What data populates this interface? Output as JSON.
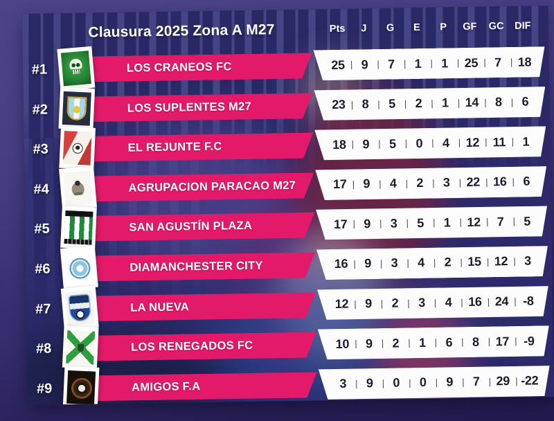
{
  "chart_data": {
    "type": "table",
    "title": "Clausura 2025 Zona A M27",
    "columns": [
      "Pts",
      "J",
      "G",
      "E",
      "P",
      "GF",
      "GC",
      "DIF"
    ],
    "rows": [
      {
        "rank": "#1",
        "team": "LOS CRANEOS FC",
        "logo": "white-skull-on-green-crest",
        "values": [
          "25",
          "9",
          "7",
          "1",
          "1",
          "25",
          "7",
          "18"
        ]
      },
      {
        "rank": "#2",
        "team": "LOS SUPLENTES M27",
        "logo": "lightblue-yellow-shield-on-dark",
        "values": [
          "23",
          "8",
          "5",
          "2",
          "1",
          "14",
          "8",
          "6"
        ]
      },
      {
        "rank": "#3",
        "team": "EL REJUNTE F.C",
        "logo": "red-white-diagonal-soccer-ball",
        "values": [
          "18",
          "9",
          "5",
          "0",
          "4",
          "12",
          "11",
          "1"
        ]
      },
      {
        "rank": "#4",
        "team": "AGRUPACION PARACAO M27",
        "logo": "grey-eagle-emblem-on-white",
        "values": [
          "17",
          "9",
          "4",
          "2",
          "3",
          "22",
          "16",
          "6"
        ]
      },
      {
        "rank": "#5",
        "team": "SAN AGUSTÍN PLAZA",
        "logo": "green-white-stripes-black-bands",
        "values": [
          "17",
          "9",
          "3",
          "5",
          "1",
          "12",
          "7",
          "5"
        ]
      },
      {
        "rank": "#6",
        "team": "DIAMANCHESTER CITY",
        "logo": "sky-blue-circle-badge",
        "values": [
          "16",
          "9",
          "3",
          "4",
          "2",
          "15",
          "12",
          "3"
        ]
      },
      {
        "rank": "#7",
        "team": "LA NUEVA",
        "logo": "blue-shield-white-band-ball",
        "values": [
          "12",
          "9",
          "2",
          "3",
          "4",
          "16",
          "24",
          "-8"
        ]
      },
      {
        "rank": "#8",
        "team": "LOS RENEGADOS FC",
        "logo": "green-x-cross-on-white",
        "values": [
          "10",
          "9",
          "2",
          "1",
          "6",
          "8",
          "17",
          "-9"
        ]
      },
      {
        "rank": "#9",
        "team": "AMIGOS F.A",
        "logo": "black-badge-brown-ring-ball",
        "values": [
          "3",
          "9",
          "0",
          "0",
          "9",
          "7",
          "29",
          "-22"
        ]
      }
    ]
  },
  "colors": {
    "accent_pink": "#e3196a",
    "stats_panel_white": "#fcfcfd",
    "background_outer_top": "#4d4389",
    "background_outer_bottom": "#221a4e",
    "photo_panel_navy": "#2c2a6a",
    "stat_text": "#1c1c2c"
  }
}
